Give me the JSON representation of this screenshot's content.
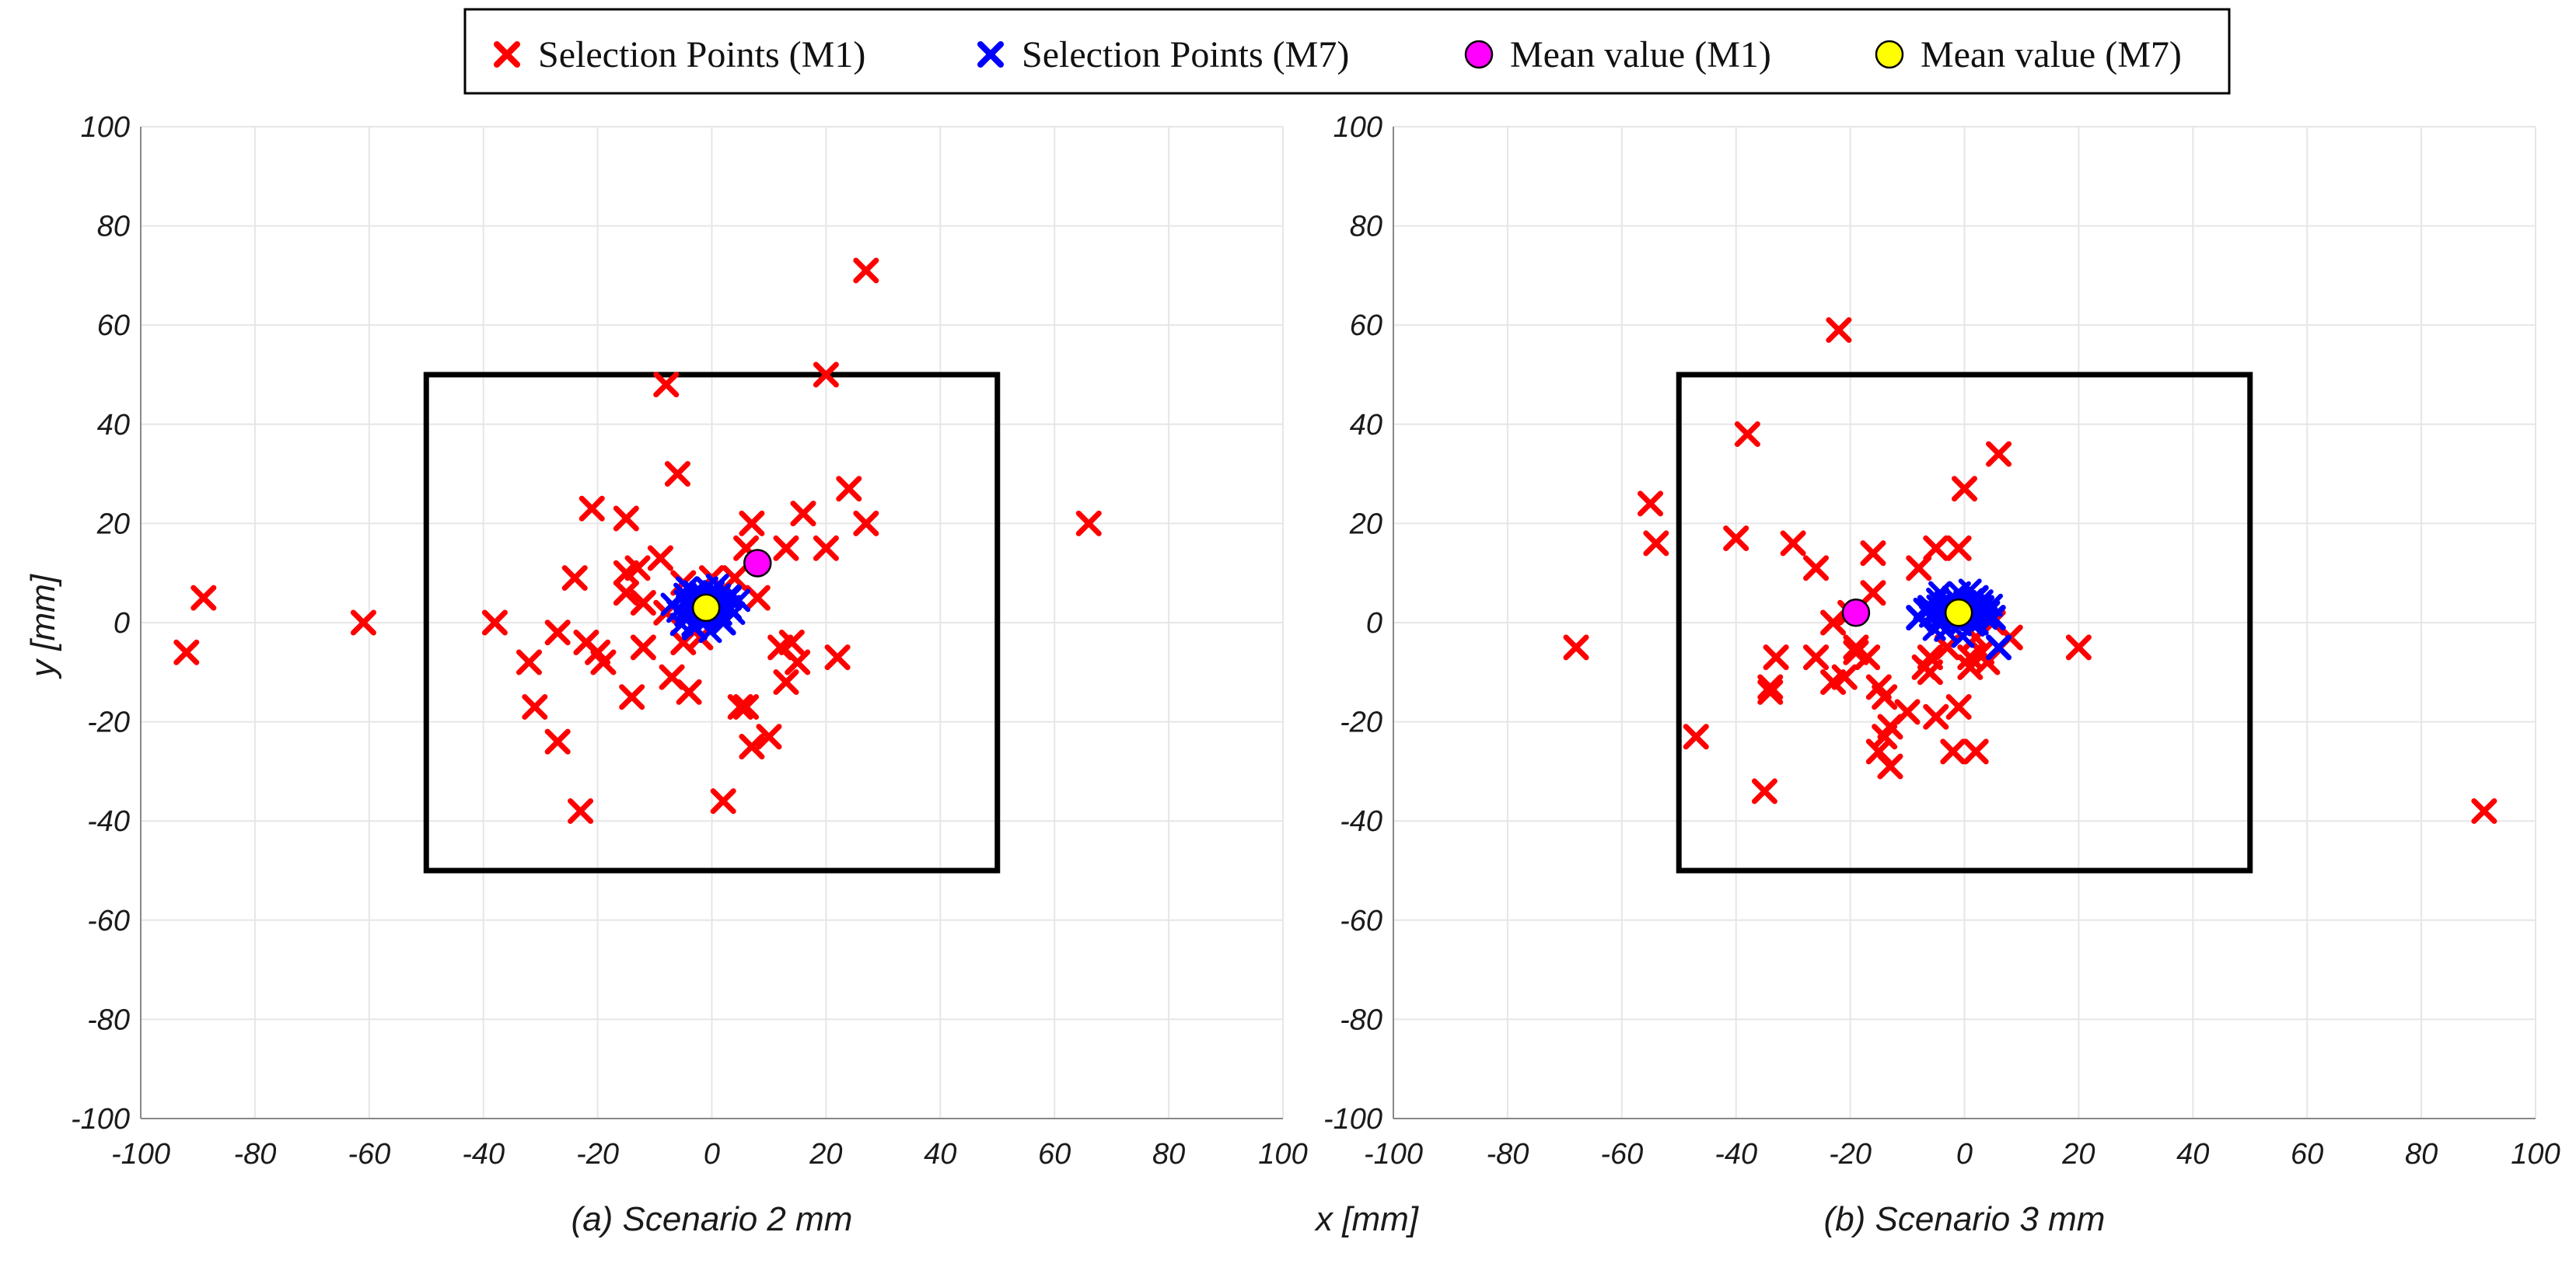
{
  "chart_data": {
    "type": "scatter",
    "colors": {
      "m1": "#ff0000",
      "m7": "#0000ff",
      "mean_m1": "#ff00ff",
      "mean_m7": "#ffff00",
      "frame": "#000000",
      "grid": "#e6e6e6"
    },
    "legend": {
      "entries": [
        {
          "label": "Selection Points (M1)",
          "symbol": "x",
          "series": "m1"
        },
        {
          "label": "Selection Points (M7)",
          "symbol": "x",
          "series": "m7"
        },
        {
          "label": "Mean value (M1)",
          "symbol": "circle",
          "series": "mean_m1"
        },
        {
          "label": "Mean value (M7)",
          "symbol": "circle",
          "series": "mean_m7"
        }
      ],
      "placement": "top-center"
    },
    "shared_xlabel": "x [mm]",
    "ylabel": "y [mm]",
    "xlim": [
      -100,
      100
    ],
    "ylim": [
      -100,
      100
    ],
    "ticks": [
      -100,
      -80,
      -60,
      -40,
      -20,
      0,
      20,
      40,
      60,
      80,
      100
    ],
    "target_square": {
      "x": [
        -50,
        50
      ],
      "y": [
        -50,
        50
      ]
    },
    "panels": [
      {
        "caption": "(a) Scenario 2 mm",
        "m1_points": [
          [
            -92,
            -6
          ],
          [
            -89,
            5
          ],
          [
            -61,
            0
          ],
          [
            -38,
            0
          ],
          [
            -32,
            -8
          ],
          [
            -31,
            -17
          ],
          [
            -27,
            -2
          ],
          [
            -27,
            -24
          ],
          [
            -24,
            9
          ],
          [
            -23,
            -38
          ],
          [
            -22,
            -4
          ],
          [
            -21,
            23
          ],
          [
            -20,
            -6
          ],
          [
            -19,
            -8
          ],
          [
            -15,
            21
          ],
          [
            -15,
            10
          ],
          [
            -15,
            6
          ],
          [
            -14,
            -15
          ],
          [
            -13,
            11
          ],
          [
            -12,
            4
          ],
          [
            -12,
            -5
          ],
          [
            -9,
            13
          ],
          [
            -8,
            48
          ],
          [
            -8,
            2
          ],
          [
            -7,
            -11
          ],
          [
            -6,
            30
          ],
          [
            -5,
            8
          ],
          [
            -5,
            -4
          ],
          [
            -4,
            -14
          ],
          [
            -2,
            -3
          ],
          [
            0,
            9
          ],
          [
            1,
            5
          ],
          [
            2,
            -36
          ],
          [
            4,
            9
          ],
          [
            5,
            -17
          ],
          [
            6,
            -17
          ],
          [
            6,
            15
          ],
          [
            7,
            20
          ],
          [
            7,
            -25
          ],
          [
            8,
            5
          ],
          [
            10,
            -23
          ],
          [
            12,
            -5
          ],
          [
            13,
            -12
          ],
          [
            13,
            15
          ],
          [
            14,
            -4
          ],
          [
            15,
            -8
          ],
          [
            16,
            22
          ],
          [
            20,
            50
          ],
          [
            20,
            15
          ],
          [
            22,
            -7
          ],
          [
            24,
            27
          ],
          [
            27,
            71
          ],
          [
            27,
            20
          ],
          [
            66,
            20
          ]
        ],
        "m7_points": [
          [
            -4,
            3
          ],
          [
            -3,
            6
          ],
          [
            -2,
            1
          ],
          [
            -1,
            5
          ],
          [
            0,
            2
          ],
          [
            1,
            4
          ],
          [
            2,
            0
          ],
          [
            3,
            3
          ],
          [
            -3,
            -1
          ],
          [
            -1,
            1
          ],
          [
            0,
            6
          ],
          [
            1,
            2
          ],
          [
            3,
            5
          ],
          [
            -2,
            4
          ]
        ],
        "mean_m1": [
          8,
          12
        ],
        "mean_m7": [
          -1,
          3
        ]
      },
      {
        "caption": "(b) Scenario 3 mm",
        "m1_points": [
          [
            -68,
            -5
          ],
          [
            -55,
            24
          ],
          [
            -54,
            16
          ],
          [
            -47,
            -23
          ],
          [
            -40,
            17
          ],
          [
            -38,
            38
          ],
          [
            -35,
            -34
          ],
          [
            -34,
            -13
          ],
          [
            -34,
            -14
          ],
          [
            -33,
            -7
          ],
          [
            -30,
            16
          ],
          [
            -26,
            11
          ],
          [
            -26,
            -7
          ],
          [
            -23,
            0
          ],
          [
            -23,
            -12
          ],
          [
            -22,
            59
          ],
          [
            -21,
            -11
          ],
          [
            -20,
            2
          ],
          [
            -19,
            -5
          ],
          [
            -19,
            -6
          ],
          [
            -17,
            -7
          ],
          [
            -16,
            6
          ],
          [
            -16,
            14
          ],
          [
            -15,
            -13
          ],
          [
            -15,
            -26
          ],
          [
            -14,
            -15
          ],
          [
            -14,
            -23
          ],
          [
            -13,
            -29
          ],
          [
            -13,
            -21
          ],
          [
            -10,
            -18
          ],
          [
            -8,
            11
          ],
          [
            -7,
            -9
          ],
          [
            -6,
            -10
          ],
          [
            -6,
            -7
          ],
          [
            -5,
            15
          ],
          [
            -5,
            -19
          ],
          [
            -4,
            0
          ],
          [
            -3,
            -5
          ],
          [
            -2,
            -26
          ],
          [
            -1,
            15
          ],
          [
            -1,
            -17
          ],
          [
            0,
            27
          ],
          [
            1,
            -9
          ],
          [
            1,
            -7
          ],
          [
            2,
            -26
          ],
          [
            2,
            -3
          ],
          [
            3,
            -6
          ],
          [
            4,
            -8
          ],
          [
            5,
            0
          ],
          [
            6,
            34
          ],
          [
            8,
            -3
          ],
          [
            20,
            -5
          ],
          [
            91,
            -38
          ]
        ],
        "m7_points": [
          [
            -8,
            1
          ],
          [
            -6,
            3
          ],
          [
            -4,
            0
          ],
          [
            -3,
            4
          ],
          [
            -2,
            2
          ],
          [
            0,
            1
          ],
          [
            1,
            4
          ],
          [
            2,
            0
          ],
          [
            3,
            3
          ],
          [
            4,
            2
          ],
          [
            5,
            1
          ],
          [
            6,
            -5
          ],
          [
            -5,
            2
          ],
          [
            2,
            5
          ]
        ],
        "mean_m1": [
          -19,
          2
        ],
        "mean_m7": [
          -1,
          2
        ]
      }
    ]
  }
}
